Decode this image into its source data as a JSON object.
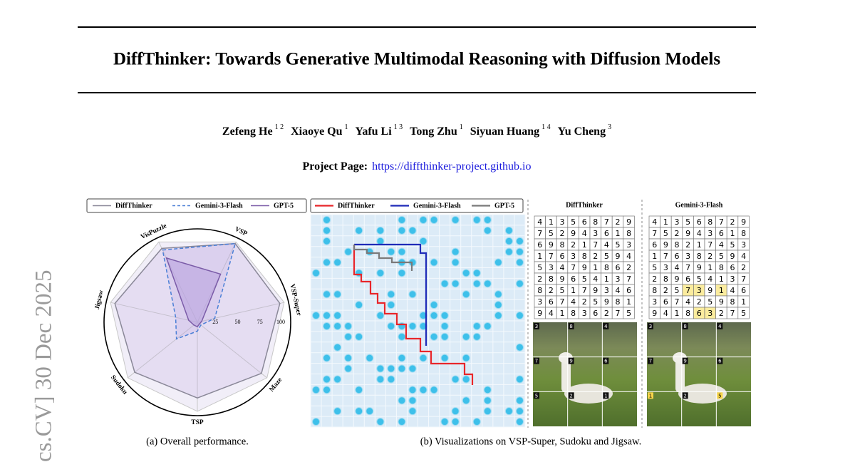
{
  "header": {
    "title": "DiffThinker: Towards Generative Multimodal Reasoning with Diffusion Models"
  },
  "authors": [
    {
      "name": "Zefeng He",
      "aff": "1 2"
    },
    {
      "name": "Xiaoye Qu",
      "aff": "1"
    },
    {
      "name": "Yafu Li",
      "aff": "1 3"
    },
    {
      "name": "Tong Zhu",
      "aff": "1"
    },
    {
      "name": "Siyuan Huang",
      "aff": "1 4"
    },
    {
      "name": "Yu Cheng",
      "aff": "3"
    }
  ],
  "project_page": {
    "label": "Project Page:",
    "url": "https://diffthinker-project.github.io"
  },
  "side_stamp": "cs.CV]  30 Dec 2025",
  "chart_data": {
    "type": "radar",
    "categories": [
      "VisPuzzle",
      "VSP",
      "VSP-Super",
      "Maze",
      "TSP",
      "Sudoku",
      "Jigsaw"
    ],
    "series": [
      {
        "name": "DiffThinker",
        "color": "#8a8898",
        "values": [
          92,
          98,
          95,
          92,
          85,
          90,
          95
        ]
      },
      {
        "name": "Gemini-3-Flash",
        "color": "#4a7fd6",
        "dashed": true,
        "values": [
          90,
          98,
          20,
          5,
          10,
          30,
          25
        ]
      },
      {
        "name": "GPT-5",
        "color": "#7b5ca8",
        "values": [
          80,
          60,
          5,
          3,
          5,
          5,
          10
        ]
      }
    ],
    "rlim": [
      0,
      100
    ],
    "rticks": [
      25,
      50,
      75,
      100
    ],
    "caption": "(a) Overall performance."
  },
  "figure_b": {
    "legend": [
      {
        "name": "DiffThinker",
        "color": "#e8262a"
      },
      {
        "name": "Gemini-3-Flash",
        "color": "#1f2bb8"
      },
      {
        "name": "GPT-5",
        "color": "#7a7a7a"
      }
    ],
    "panel_titles": [
      "DiffThinker",
      "Gemini-3-Flash"
    ],
    "sudoku": [
      {
        "rows": [
          [
            4,
            1,
            3,
            5,
            6,
            8,
            7,
            2,
            9
          ],
          [
            7,
            5,
            2,
            9,
            4,
            3,
            6,
            1,
            8
          ],
          [
            6,
            9,
            8,
            2,
            1,
            7,
            4,
            5,
            3
          ],
          [
            1,
            7,
            6,
            3,
            8,
            2,
            5,
            9,
            4
          ],
          [
            5,
            3,
            4,
            7,
            9,
            1,
            8,
            6,
            2
          ],
          [
            2,
            8,
            9,
            6,
            5,
            4,
            1,
            3,
            7
          ],
          [
            8,
            2,
            5,
            1,
            7,
            9,
            3,
            4,
            6
          ],
          [
            3,
            6,
            7,
            4,
            2,
            5,
            9,
            8,
            1
          ],
          [
            9,
            4,
            1,
            8,
            3,
            6,
            2,
            7,
            5
          ]
        ],
        "highlight": []
      },
      {
        "rows": [
          [
            4,
            1,
            3,
            5,
            6,
            8,
            7,
            2,
            9
          ],
          [
            7,
            5,
            2,
            9,
            4,
            3,
            6,
            1,
            8
          ],
          [
            6,
            9,
            8,
            2,
            1,
            7,
            4,
            5,
            3
          ],
          [
            1,
            7,
            6,
            3,
            8,
            2,
            5,
            9,
            4
          ],
          [
            5,
            3,
            4,
            7,
            9,
            1,
            8,
            6,
            2
          ],
          [
            2,
            8,
            9,
            6,
            5,
            4,
            1,
            3,
            7
          ],
          [
            8,
            2,
            5,
            7,
            3,
            9,
            1,
            4,
            6
          ],
          [
            3,
            6,
            7,
            4,
            2,
            5,
            9,
            8,
            1
          ],
          [
            9,
            4,
            1,
            8,
            6,
            3,
            2,
            7,
            5
          ]
        ],
        "highlight": [
          [
            6,
            3
          ],
          [
            6,
            4
          ],
          [
            6,
            6
          ],
          [
            8,
            4
          ],
          [
            8,
            5
          ]
        ]
      }
    ],
    "jigsaw": [
      {
        "labels": [
          3,
          8,
          4,
          7,
          9,
          6,
          5,
          2,
          1
        ],
        "highlight": []
      },
      {
        "labels": [
          3,
          8,
          4,
          7,
          9,
          6,
          1,
          2,
          5
        ],
        "highlight": [
          6,
          8
        ]
      }
    ],
    "caption": "(b) Visualizations on VSP-Super, Sudoku and Jigsaw."
  }
}
